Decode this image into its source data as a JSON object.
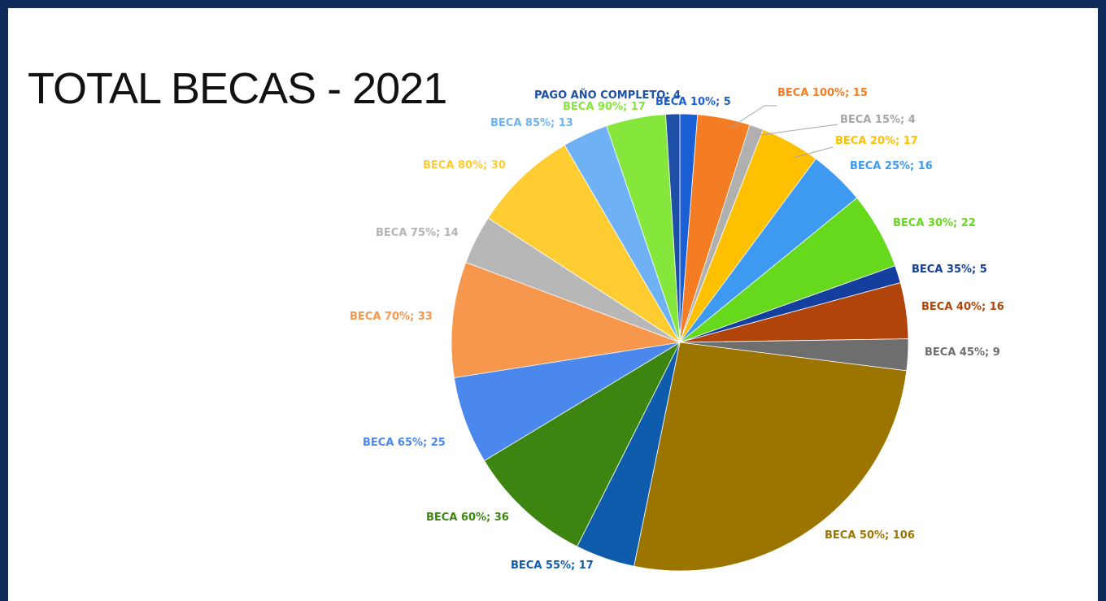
{
  "slide": {
    "title": "TOTAL BECAS - 2021"
  },
  "chart_data": {
    "type": "pie",
    "title": "",
    "start": "clockwise from top",
    "slices": [
      {
        "label": "BECA 10%",
        "value": 5,
        "color": "#1a5fd6",
        "label_color": "#1a5fd6",
        "text": "BECA 10%; 5"
      },
      {
        "label": "BECA 100%",
        "value": 15,
        "color": "#f47c22",
        "label_color": "#f47c22",
        "text": "BECA 100%; 15"
      },
      {
        "label": "BECA 15%",
        "value": 4,
        "color": "#b0b0b0",
        "label_color": "#a6a6a6",
        "text": "BECA 15%; 4"
      },
      {
        "label": "BECA 20%",
        "value": 17,
        "color": "#ffc000",
        "label_color": "#ffc000",
        "text": "BECA 20%; 17"
      },
      {
        "label": "BECA 25%",
        "value": 16,
        "color": "#3d9af0",
        "label_color": "#3d9af0",
        "text": "BECA 25%; 16"
      },
      {
        "label": "BECA 30%",
        "value": 22,
        "color": "#66d91c",
        "label_color": "#66d91c",
        "text": "BECA 30%; 22"
      },
      {
        "label": "BECA 35%",
        "value": 5,
        "color": "#153f9e",
        "label_color": "#153f9e",
        "text": "BECA 35%; 5"
      },
      {
        "label": "BECA 40%",
        "value": 16,
        "color": "#b0440a",
        "label_color": "#b0440a",
        "text": "BECA 40%; 16"
      },
      {
        "label": "BECA 45%",
        "value": 9,
        "color": "#6e6e6e",
        "label_color": "#6e6e6e",
        "text": "BECA 45%; 9"
      },
      {
        "label": "BECA 50%",
        "value": 106,
        "color": "#9c7400",
        "label_color": "#9c7400",
        "text": "BECA 50%; 106"
      },
      {
        "label": "BECA 55%",
        "value": 17,
        "color": "#0e5cab",
        "label_color": "#0e5cab",
        "text": "BECA 55%; 17"
      },
      {
        "label": "BECA 60%",
        "value": 36,
        "color": "#3d8511",
        "label_color": "#3d8511",
        "text": "BECA 60%; 36"
      },
      {
        "label": "BECA 65%",
        "value": 25,
        "color": "#4a88ee",
        "label_color": "#4a88ee",
        "text": "BECA 65%; 25"
      },
      {
        "label": "BECA 70%",
        "value": 33,
        "color": "#f7974d",
        "label_color": "#f7974d",
        "text": "BECA 70%; 33"
      },
      {
        "label": "BECA 75%",
        "value": 14,
        "color": "#b7b7b7",
        "label_color": "#b3b3b3",
        "text": "BECA 75%; 14"
      },
      {
        "label": "BECA 80%",
        "value": 30,
        "color": "#ffcd32",
        "label_color": "#ffcd32",
        "text": "BECA 80%; 30"
      },
      {
        "label": "BECA 85%",
        "value": 13,
        "color": "#6fb1f5",
        "label_color": "#6fb1f5",
        "text": "BECA 85%; 13"
      },
      {
        "label": "BECA 90%",
        "value": 17,
        "color": "#85e63c",
        "label_color": "#85e63c",
        "text": "BECA 90%; 17"
      },
      {
        "label": "PAGO AÑO COMPLETO",
        "value": 4,
        "color": "#1d4fa6",
        "label_color": "#1d4fa6",
        "text": "PAGO AÑO COMPLETO; 4"
      }
    ]
  }
}
